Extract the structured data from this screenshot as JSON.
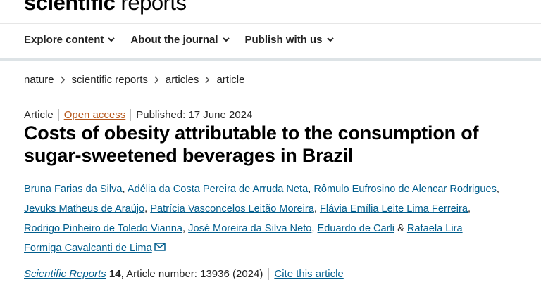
{
  "header": {
    "logo_bold": "scientific",
    "logo_light": "reports"
  },
  "nav": [
    "Explore content",
    "About the journal",
    "Publish with us"
  ],
  "breadcrumb": [
    "nature",
    "scientific reports",
    "articles",
    "article"
  ],
  "meta": {
    "type": "Article",
    "access": "Open access",
    "published": "Published: 17 June 2024"
  },
  "title": "Costs of obesity attributable to the consumption of sugar-sweetened beverages in Brazil",
  "authors": {
    "names": [
      "Bruna Farias da Silva",
      "Adélia da Costa Pereira de Arruda Neta",
      "Rômulo Eufrosino de Alencar Rodrigues",
      "Jevuks Matheus de Araújo",
      "Patrícia Vasconcelos Leitão Moreira",
      "Flávia Emília Leite Lima Ferreira",
      "Rodrigo Pinheiro de Toledo Vianna",
      "José Moreira da Silva Neto",
      "Eduardo de Carli",
      "Rafaela Lira Formiga Cavalcanti de Lima"
    ],
    "separator": ",",
    "conjunction": "&"
  },
  "citation": {
    "journal": "Scientific Reports",
    "volume": "14",
    "details": ", Article number: 13936 (2024)",
    "cite": "Cite this article"
  }
}
